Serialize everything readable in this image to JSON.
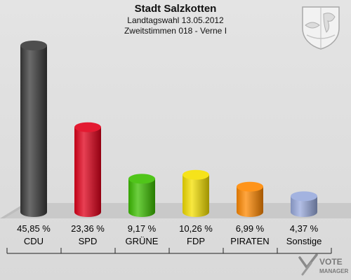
{
  "header": {
    "title": "Stadt Salzkotten",
    "subtitle1": "Landtagswahl 13.05.2012",
    "subtitle2": "Zweitstimmen 018 - Verne I"
  },
  "watermark": {
    "line1": "VOTE",
    "line2": "MANAGER"
  },
  "chart_data": {
    "type": "bar",
    "title": "Stadt Salzkotten",
    "subtitle": "Landtagswahl 13.05.2012 — Zweitstimmen 018 - Verne I",
    "categories": [
      "CDU",
      "SPD",
      "GRÜNE",
      "FDP",
      "PIRATEN",
      "Sonstige"
    ],
    "values": [
      45.85,
      23.36,
      9.17,
      10.26,
      6.99,
      4.37
    ],
    "value_labels": [
      "45,85 %",
      "23,36 %",
      "9,17 %",
      "10,26 %",
      "6,99 %",
      "4,37 %"
    ],
    "colors": [
      "#3a3a3a",
      "#e0001a",
      "#3cbf00",
      "#f5e000",
      "#ff8800",
      "#99aadd"
    ],
    "ylim": [
      0,
      45.85
    ],
    "grid": false,
    "legend": "none"
  }
}
